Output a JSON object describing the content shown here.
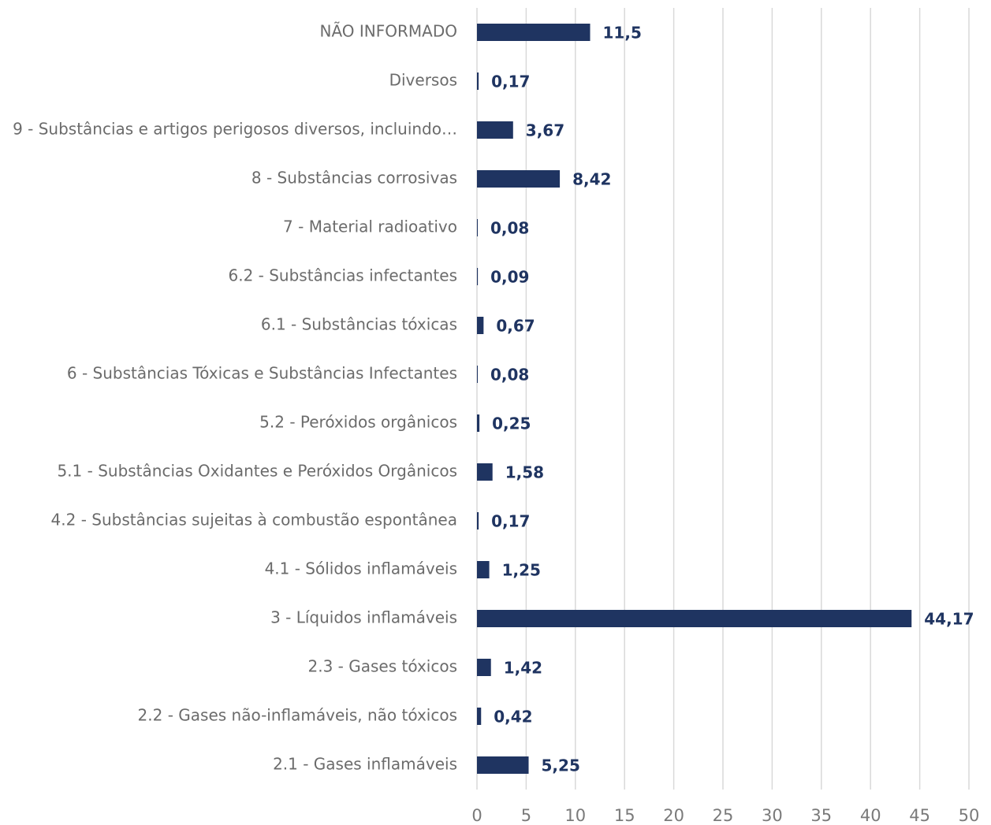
{
  "chart_data": {
    "type": "hbar",
    "categories": [
      "NÃO INFORMADO",
      "Diversos",
      "9 - Substâncias e artigos perigosos diversos, incluindo…",
      "8 - Substâncias corrosivas",
      "7 - Material radioativo",
      "6.2 - Substâncias infectantes",
      "6.1 - Substâncias tóxicas",
      "6 - Substâncias Tóxicas e Substâncias Infectantes",
      "5.2 - Peróxidos orgânicos",
      "5.1 - Substâncias Oxidantes e Peróxidos Orgânicos",
      "4.2 - Substâncias sujeitas à combustão espontânea",
      "4.1 - Sólidos inflamáveis",
      "3 - Líquidos inflamáveis",
      "2.3 - Gases tóxicos",
      "2.2 - Gases não-inflamáveis, não tóxicos",
      "2.1 - Gases inflamáveis"
    ],
    "values": [
      11.5,
      0.17,
      3.67,
      8.42,
      0.08,
      0.09,
      0.67,
      0.08,
      0.25,
      1.58,
      0.17,
      1.25,
      44.17,
      1.42,
      0.42,
      5.25
    ],
    "value_labels": [
      "11,5",
      "0,17",
      "3,67",
      "8,42",
      "0,08",
      "0,09",
      "0,67",
      "0,08",
      "0,25",
      "1,58",
      "0,17",
      "1,25",
      "44,17",
      "1,42",
      "0,42",
      "5,25"
    ],
    "color": "#1f3461",
    "xlim": [
      0,
      50
    ],
    "xticks": [
      0,
      5,
      10,
      15,
      20,
      25,
      30,
      35,
      40,
      45,
      50
    ],
    "grid": true
  }
}
